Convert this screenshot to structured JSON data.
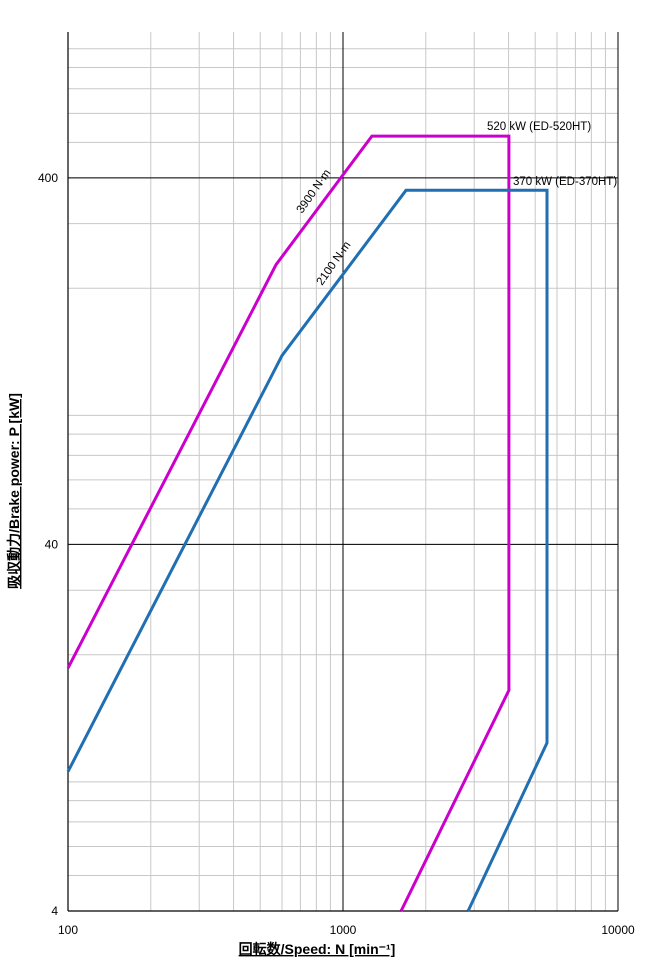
{
  "chart_data": {
    "type": "line",
    "xlabel": "回転数/Speed: N [min⁻¹]",
    "ylabel": "吸収動力/Brake power: P [kW]",
    "xscale": "log",
    "yscale": "log",
    "grid": true,
    "minor_grid": true,
    "xlim": [
      100,
      10000
    ],
    "xticks": [
      100,
      1000,
      10000
    ],
    "ylim": [
      4,
      1000
    ],
    "yticks": [
      4,
      40,
      400
    ],
    "annotations": [
      "520 kW (ED-520HT)",
      "370 kW (ED-370HT)",
      "3900 N·m",
      "2100 N·m"
    ],
    "series": [
      {
        "name": "ED-520HT",
        "color": "#cc00cc",
        "x": [
          100,
          571,
          1274,
          4010,
          4010,
          1626
        ],
        "values": [
          18.4,
          232,
          520,
          520,
          16.0,
          4
        ]
      },
      {
        "name": "ED-370HT",
        "color": "#1f6fb2",
        "x": [
          100,
          600,
          1694,
          5518,
          5518,
          2850
        ],
        "values": [
          9.6,
          131,
          370,
          370,
          11.5,
          4
        ]
      }
    ]
  }
}
